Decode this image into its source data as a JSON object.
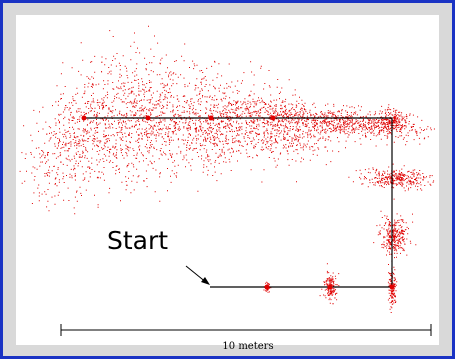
{
  "figure": {
    "start_label": "Start",
    "scale_label": "10 meters",
    "colors": {
      "border": "#1a33c4",
      "background": "#d9d9d9",
      "plot_background": "#ffffff",
      "particles": "#e00000",
      "path": "#000000"
    }
  }
}
